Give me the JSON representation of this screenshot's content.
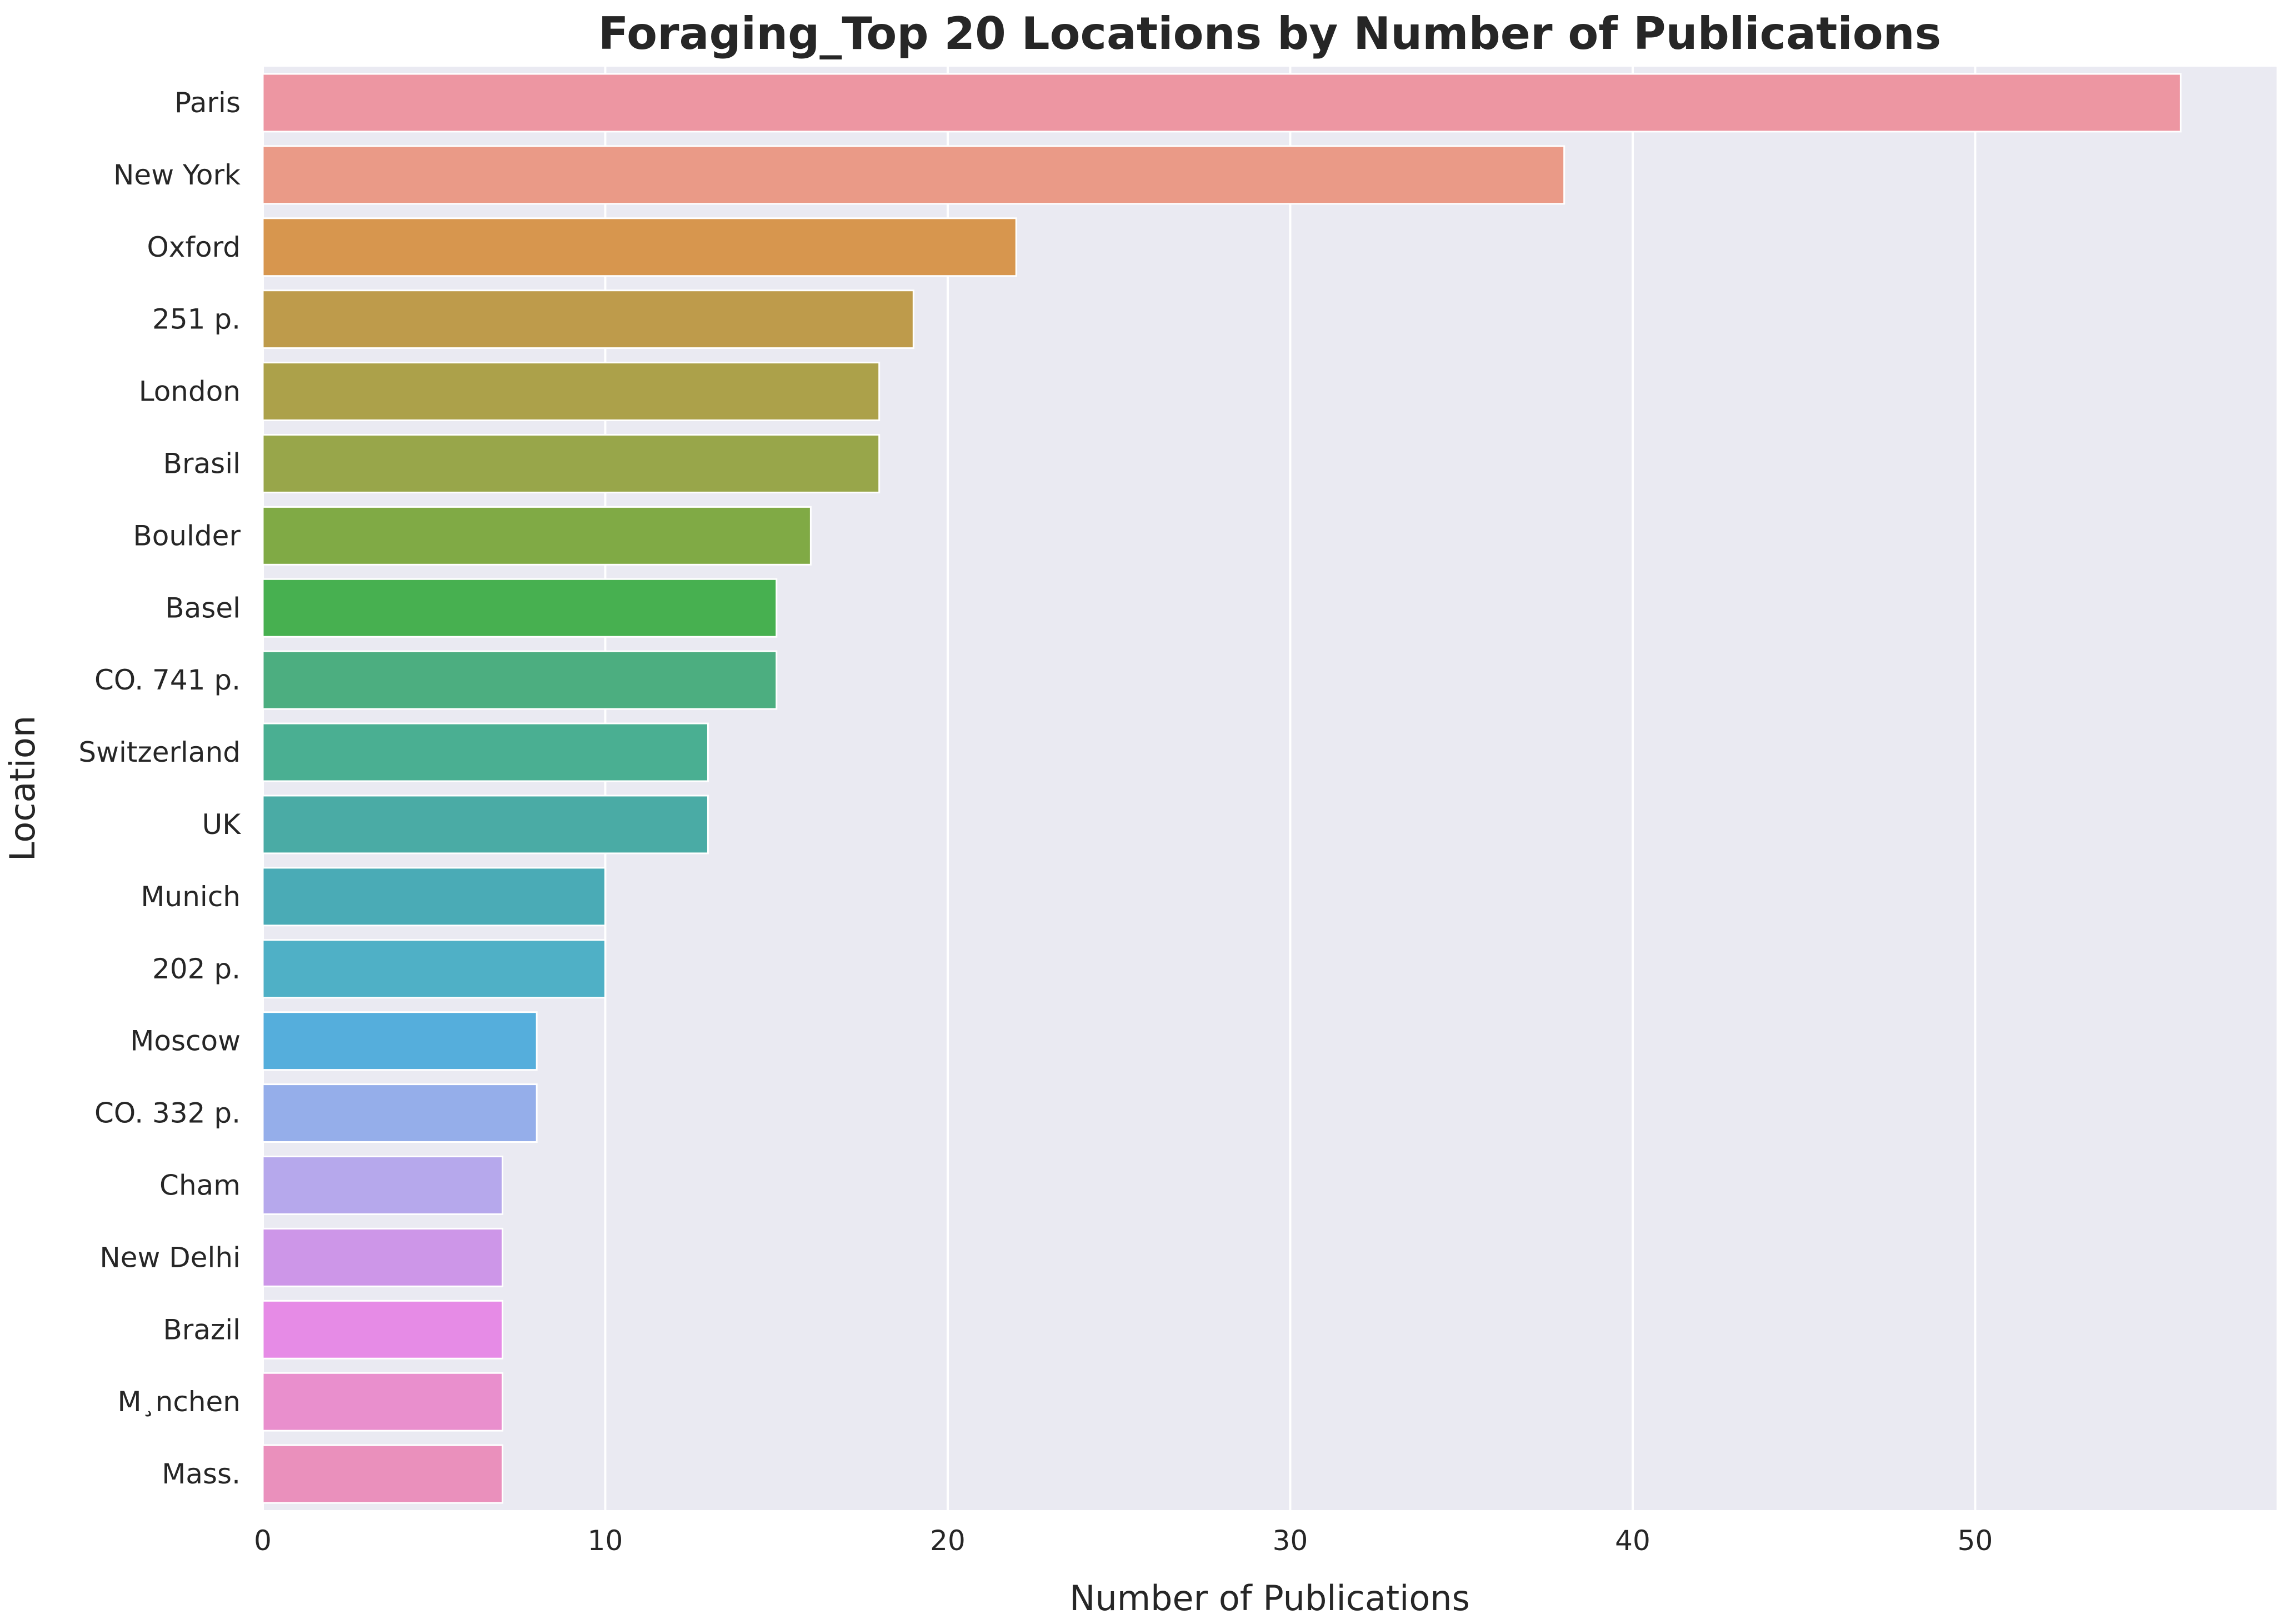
{
  "chart_data": {
    "type": "bar",
    "orientation": "horizontal",
    "title": "Foraging_Top 20 Locations by Number of Publications",
    "xlabel": "Number of Publications",
    "ylabel": "Location",
    "xlim": [
      0,
      58.8
    ],
    "xticks": [
      0,
      10,
      20,
      30,
      40,
      50
    ],
    "grid": true,
    "background_color": "#eaeaf2",
    "grid_color": "#ffffff",
    "categories": [
      "Paris",
      "New York",
      "Oxford",
      "251 p.",
      "London",
      "Brasil",
      "Boulder",
      "Basel",
      "CO. 741 p.",
      "Switzerland",
      "UK",
      "Munich",
      "202 p.",
      "Moscow",
      "CO. 332 p.",
      "Cham",
      "New Delhi",
      "Brazil",
      "M¸nchen",
      "Mass."
    ],
    "values": [
      56,
      38,
      22,
      19,
      18,
      18,
      16,
      15,
      15,
      13,
      13,
      10,
      10,
      8,
      8,
      7,
      7,
      7,
      7,
      7
    ],
    "colors": [
      "#ed96a2",
      "#ea9a87",
      "#d7964e",
      "#be9b4b",
      "#aca14a",
      "#98a64a",
      "#80aa45",
      "#47b050",
      "#4cae80",
      "#4aaf92",
      "#4aaba5",
      "#4aabb6",
      "#4fb0c6",
      "#55aedc",
      "#95aeea",
      "#b6a8ec",
      "#cd96e8",
      "#e68be6",
      "#e98fcd",
      "#ea90bc"
    ]
  }
}
